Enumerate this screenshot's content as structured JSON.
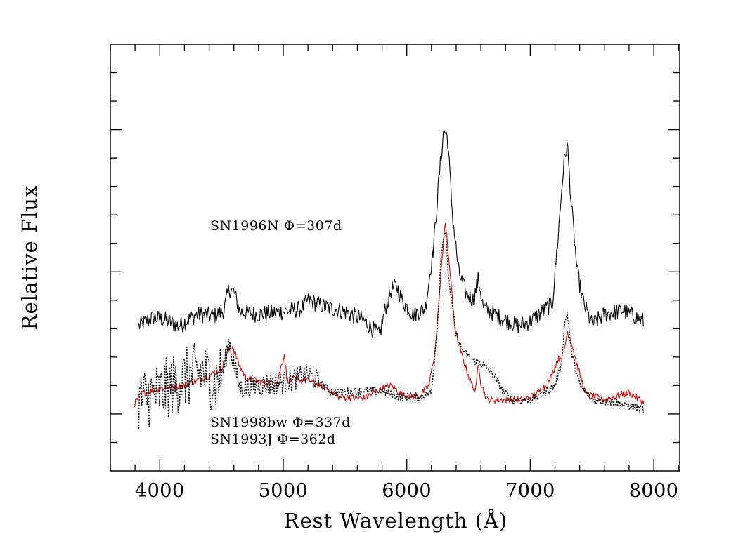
{
  "chart_data": {
    "type": "line",
    "title": "",
    "xlabel": "Rest Wavelength (Å)",
    "ylabel": "Relative Flux",
    "xlim": [
      3600,
      8210
    ],
    "ylim": [
      -0.4,
      2.6
    ],
    "x_major_ticks": [
      4000,
      5000,
      6000,
      7000,
      8000
    ],
    "x_tick_labels": [
      "4000",
      "5000",
      "6000",
      "7000",
      "8000"
    ],
    "x_minor_step": 200,
    "y_major_ticks": [
      0,
      1,
      2
    ],
    "y_minor_step": 0.2,
    "y_tick_labels_shown": false,
    "grid": false,
    "annotations": [
      {
        "text": "SN1996N Φ=307d",
        "x": 4400,
        "y": 1.09
      },
      {
        "text": "SN1998bw Φ=337d",
        "x": 4400,
        "y": -0.12
      },
      {
        "text": "SN1993J Φ=362d",
        "x": 4400,
        "y": -0.22
      }
    ],
    "series": [
      {
        "name": "SN1996N Φ=307d",
        "color": "#000000",
        "style": "solid",
        "noise": 0.06,
        "points": [
          [
            3830,
            0.62
          ],
          [
            3950,
            0.68
          ],
          [
            4050,
            0.66
          ],
          [
            4150,
            0.62
          ],
          [
            4300,
            0.7
          ],
          [
            4450,
            0.69
          ],
          [
            4520,
            0.73
          ],
          [
            4560,
            0.88
          ],
          [
            4600,
            0.86
          ],
          [
            4650,
            0.72
          ],
          [
            4800,
            0.7
          ],
          [
            5000,
            0.72
          ],
          [
            5150,
            0.74
          ],
          [
            5200,
            0.8
          ],
          [
            5350,
            0.75
          ],
          [
            5500,
            0.72
          ],
          [
            5650,
            0.66
          ],
          [
            5780,
            0.55
          ],
          [
            5820,
            0.72
          ],
          [
            5880,
            0.88
          ],
          [
            5920,
            0.9
          ],
          [
            5960,
            0.8
          ],
          [
            6050,
            0.7
          ],
          [
            6150,
            0.74
          ],
          [
            6220,
            1.2
          ],
          [
            6260,
            1.65
          ],
          [
            6300,
            2.0
          ],
          [
            6330,
            1.95
          ],
          [
            6370,
            1.4
          ],
          [
            6420,
            1.0
          ],
          [
            6480,
            0.85
          ],
          [
            6540,
            0.8
          ],
          [
            6580,
            0.95
          ],
          [
            6620,
            0.75
          ],
          [
            6750,
            0.68
          ],
          [
            6900,
            0.62
          ],
          [
            7000,
            0.65
          ],
          [
            7100,
            0.72
          ],
          [
            7180,
            0.78
          ],
          [
            7230,
            1.3
          ],
          [
            7270,
            1.75
          ],
          [
            7300,
            1.9
          ],
          [
            7330,
            1.5
          ],
          [
            7380,
            1.0
          ],
          [
            7430,
            0.78
          ],
          [
            7500,
            0.63
          ],
          [
            7600,
            0.7
          ],
          [
            7750,
            0.73
          ],
          [
            7920,
            0.65
          ]
        ]
      },
      {
        "name": "SN1998bw Φ=337d",
        "color": "#cc1111",
        "style": "solid",
        "noise": 0.025,
        "points": [
          [
            3780,
            0.05
          ],
          [
            3850,
            0.14
          ],
          [
            4000,
            0.18
          ],
          [
            4200,
            0.2
          ],
          [
            4400,
            0.27
          ],
          [
            4500,
            0.32
          ],
          [
            4560,
            0.45
          ],
          [
            4590,
            0.48
          ],
          [
            4640,
            0.35
          ],
          [
            4700,
            0.25
          ],
          [
            4850,
            0.22
          ],
          [
            4950,
            0.22
          ],
          [
            4990,
            0.36
          ],
          [
            5010,
            0.42
          ],
          [
            5030,
            0.24
          ],
          [
            5200,
            0.24
          ],
          [
            5350,
            0.18
          ],
          [
            5450,
            0.12
          ],
          [
            5650,
            0.11
          ],
          [
            5800,
            0.18
          ],
          [
            5880,
            0.2
          ],
          [
            5950,
            0.14
          ],
          [
            6100,
            0.12
          ],
          [
            6180,
            0.2
          ],
          [
            6230,
            0.45
          ],
          [
            6270,
            0.9
          ],
          [
            6310,
            1.36
          ],
          [
            6340,
            1.1
          ],
          [
            6390,
            0.6
          ],
          [
            6450,
            0.4
          ],
          [
            6520,
            0.22
          ],
          [
            6560,
            0.16
          ],
          [
            6580,
            0.38
          ],
          [
            6600,
            0.22
          ],
          [
            6650,
            0.1
          ],
          [
            6800,
            0.1
          ],
          [
            6950,
            0.1
          ],
          [
            7050,
            0.14
          ],
          [
            7150,
            0.22
          ],
          [
            7220,
            0.38
          ],
          [
            7270,
            0.42
          ],
          [
            7300,
            0.58
          ],
          [
            7330,
            0.52
          ],
          [
            7380,
            0.34
          ],
          [
            7450,
            0.14
          ],
          [
            7600,
            0.1
          ],
          [
            7800,
            0.15
          ],
          [
            7920,
            0.08
          ]
        ]
      },
      {
        "name": "SN1993J Φ=362d",
        "color": "#000000",
        "style": "dotted",
        "noise": 0.03,
        "points": [
          [
            3830,
            0.1
          ],
          [
            4000,
            0.15
          ],
          [
            4200,
            0.25
          ],
          [
            4350,
            0.3
          ],
          [
            4450,
            0.22
          ],
          [
            4520,
            0.32
          ],
          [
            4560,
            0.52
          ],
          [
            4600,
            0.35
          ],
          [
            4650,
            0.18
          ],
          [
            4800,
            0.2
          ],
          [
            5000,
            0.22
          ],
          [
            5200,
            0.28
          ],
          [
            5400,
            0.15
          ],
          [
            5600,
            0.16
          ],
          [
            5800,
            0.16
          ],
          [
            5950,
            0.12
          ],
          [
            6100,
            0.12
          ],
          [
            6200,
            0.15
          ],
          [
            6250,
            0.65
          ],
          [
            6280,
            1.15
          ],
          [
            6310,
            1.3
          ],
          [
            6340,
            0.95
          ],
          [
            6400,
            0.55
          ],
          [
            6450,
            0.45
          ],
          [
            6530,
            0.38
          ],
          [
            6600,
            0.36
          ],
          [
            6700,
            0.28
          ],
          [
            6780,
            0.16
          ],
          [
            6850,
            0.1
          ],
          [
            7000,
            0.1
          ],
          [
            7100,
            0.14
          ],
          [
            7200,
            0.2
          ],
          [
            7250,
            0.35
          ],
          [
            7280,
            0.64
          ],
          [
            7300,
            0.72
          ],
          [
            7330,
            0.45
          ],
          [
            7400,
            0.2
          ],
          [
            7500,
            0.1
          ],
          [
            7700,
            0.08
          ],
          [
            7920,
            0.03
          ]
        ]
      }
    ]
  }
}
